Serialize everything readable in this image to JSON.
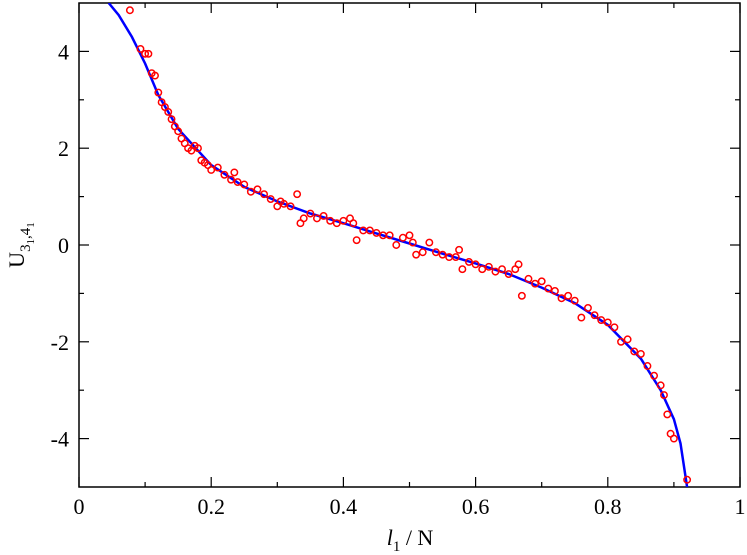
{
  "chart_data": {
    "type": "scatter",
    "x_label": [
      "l",
      "1",
      " / N"
    ],
    "y_label": [
      "U",
      "3",
      "1",
      ",4",
      "1"
    ],
    "xlim": [
      0,
      1
    ],
    "ylim": [
      -5,
      5
    ],
    "xticks": [
      0,
      0.2,
      0.4,
      0.6,
      0.8,
      1
    ],
    "yticks": [
      -4,
      -2,
      0,
      2,
      4
    ],
    "xminor_ticks": [
      0.1,
      0.3,
      0.5,
      0.7,
      0.9
    ],
    "yminor_ticks": [
      -3,
      -1,
      1,
      3
    ],
    "points": {
      "color": "#ff0000",
      "x": [
        0.077,
        0.093,
        0.1,
        0.105,
        0.11,
        0.115,
        0.12,
        0.125,
        0.13,
        0.135,
        0.14,
        0.145,
        0.15,
        0.155,
        0.16,
        0.165,
        0.17,
        0.175,
        0.18,
        0.185,
        0.19,
        0.195,
        0.2,
        0.21,
        0.22,
        0.23,
        0.235,
        0.24,
        0.25,
        0.26,
        0.27,
        0.28,
        0.29,
        0.3,
        0.305,
        0.31,
        0.32,
        0.33,
        0.335,
        0.34,
        0.35,
        0.36,
        0.37,
        0.38,
        0.39,
        0.4,
        0.41,
        0.415,
        0.42,
        0.43,
        0.44,
        0.45,
        0.46,
        0.47,
        0.48,
        0.49,
        0.5,
        0.505,
        0.51,
        0.52,
        0.53,
        0.54,
        0.55,
        0.56,
        0.57,
        0.575,
        0.58,
        0.59,
        0.6,
        0.61,
        0.62,
        0.63,
        0.64,
        0.65,
        0.66,
        0.665,
        0.67,
        0.68,
        0.69,
        0.7,
        0.71,
        0.72,
        0.73,
        0.74,
        0.75,
        0.76,
        0.77,
        0.78,
        0.79,
        0.8,
        0.81,
        0.82,
        0.83,
        0.84,
        0.85,
        0.86,
        0.87,
        0.88,
        0.885,
        0.89,
        0.895,
        0.9,
        0.92
      ],
      "y": [
        4.85,
        4.05,
        3.95,
        3.95,
        3.55,
        3.5,
        3.15,
        2.95,
        2.85,
        2.75,
        2.6,
        2.45,
        2.35,
        2.2,
        2.1,
        2.0,
        1.95,
        2.05,
        2.0,
        1.75,
        1.7,
        1.65,
        1.55,
        1.6,
        1.45,
        1.35,
        1.5,
        1.3,
        1.25,
        1.1,
        1.15,
        1.05,
        0.95,
        0.8,
        0.9,
        0.85,
        0.8,
        1.05,
        0.45,
        0.55,
        0.65,
        0.55,
        0.6,
        0.5,
        0.45,
        0.5,
        0.55,
        0.45,
        0.1,
        0.3,
        0.3,
        0.25,
        0.2,
        0.2,
        0.0,
        0.15,
        0.2,
        0.05,
        -0.2,
        -0.15,
        0.05,
        -0.15,
        -0.2,
        -0.25,
        -0.25,
        -0.1,
        -0.5,
        -0.35,
        -0.4,
        -0.5,
        -0.45,
        -0.55,
        -0.5,
        -0.6,
        -0.5,
        -0.4,
        -1.05,
        -0.7,
        -0.8,
        -0.75,
        -0.9,
        -0.95,
        -1.1,
        -1.05,
        -1.15,
        -1.5,
        -1.3,
        -1.45,
        -1.55,
        -1.6,
        -1.7,
        -2.0,
        -1.95,
        -2.2,
        -2.25,
        -2.5,
        -2.7,
        -2.9,
        -3.1,
        -3.5,
        -3.9,
        -4.0,
        -4.85
      ]
    },
    "fit": {
      "color": "#0000ff",
      "x": [
        0.045,
        0.06,
        0.08,
        0.1,
        0.12,
        0.15,
        0.2,
        0.25,
        0.3,
        0.35,
        0.4,
        0.45,
        0.5,
        0.55,
        0.6,
        0.65,
        0.7,
        0.75,
        0.8,
        0.85,
        0.88,
        0.9,
        0.91,
        0.92
      ],
      "y": [
        5,
        4.75,
        4.3,
        3.75,
        3.1,
        2.4,
        1.65,
        1.2,
        0.9,
        0.65,
        0.45,
        0.24,
        0.03,
        -0.18,
        -0.38,
        -0.6,
        -0.88,
        -1.2,
        -1.65,
        -2.35,
        -3.0,
        -3.6,
        -4.1,
        -5
      ]
    }
  }
}
